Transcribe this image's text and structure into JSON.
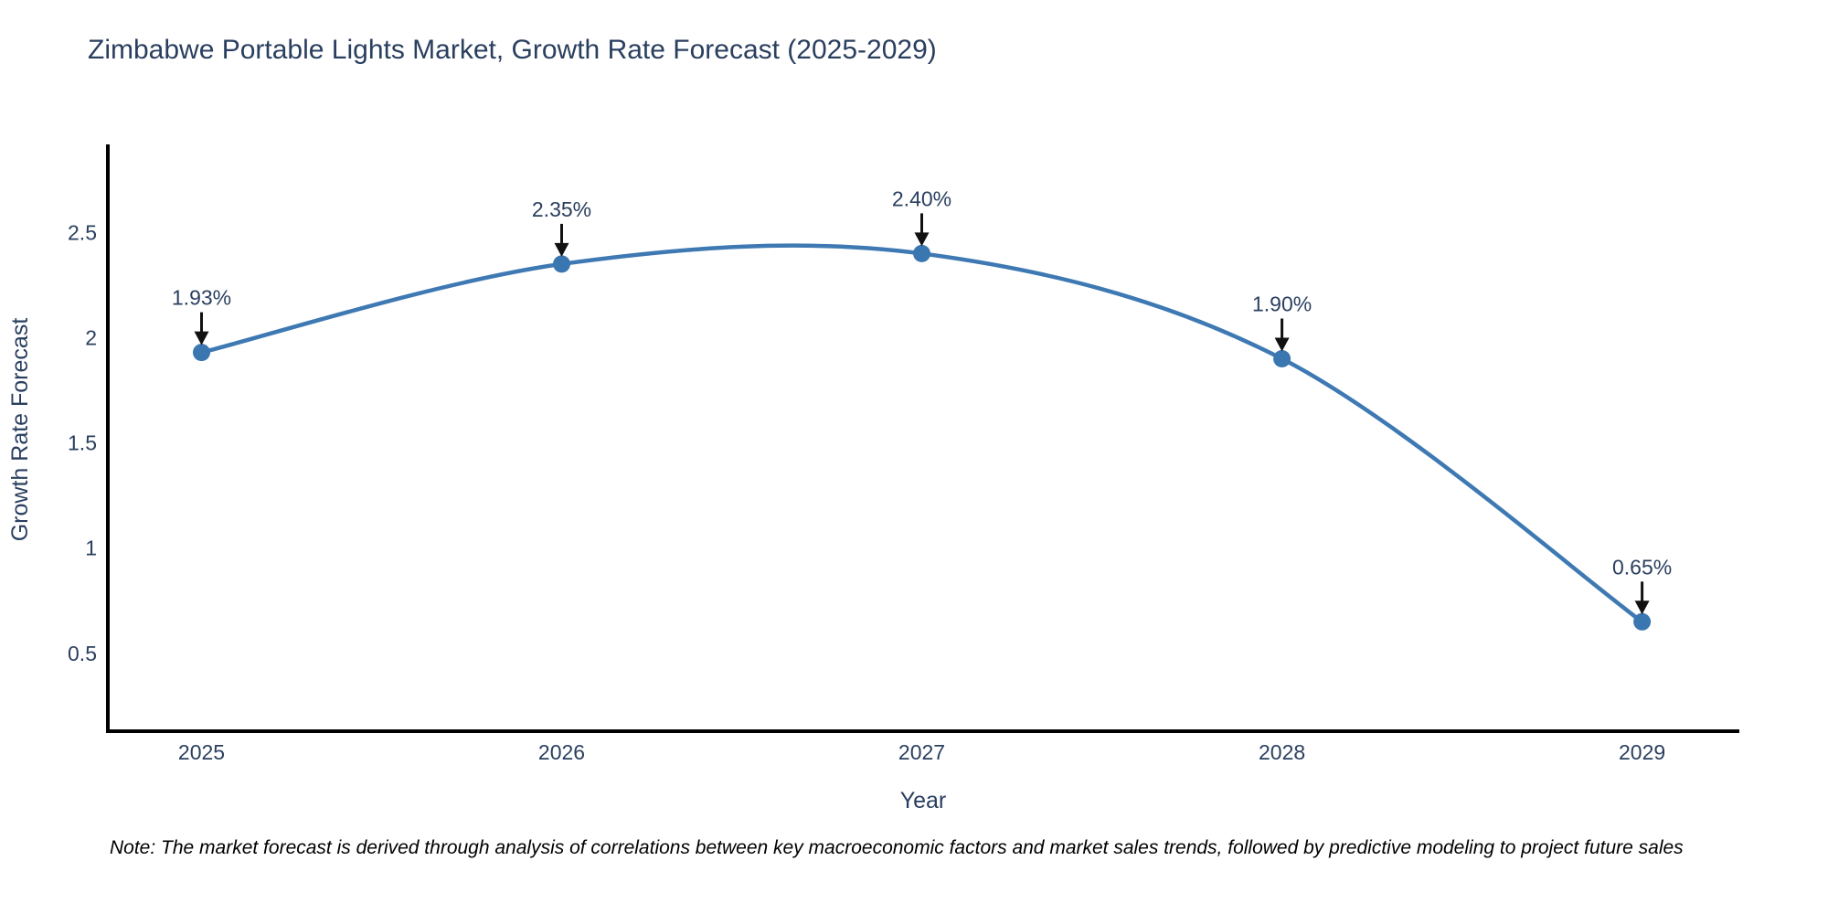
{
  "chart_data": {
    "type": "line",
    "title": "Zimbabwe Portable Lights Market, Growth Rate Forecast (2025-2029)",
    "xlabel": "Year",
    "ylabel": "Growth Rate Forecast",
    "x": [
      2025,
      2026,
      2027,
      2028,
      2029
    ],
    "series": [
      {
        "name": "Growth Rate Forecast",
        "values": [
          1.93,
          2.35,
          2.4,
          1.9,
          0.65
        ]
      }
    ],
    "point_labels": [
      "1.93%",
      "2.35%",
      "2.40%",
      "1.90%",
      "0.65%"
    ],
    "x_ticks": [
      "2025",
      "2026",
      "2027",
      "2028",
      "2029"
    ],
    "y_ticks": [
      0.5,
      1,
      1.5,
      2,
      2.5
    ],
    "xlim": [
      2024.74,
      2029.27
    ],
    "ylim": [
      0.13,
      2.91
    ],
    "grid": false,
    "legend_position": "none",
    "line_shape": "spline",
    "marker_style": "circle-with-down-arrow-annotation",
    "colors": {
      "line": "#3e79b3",
      "marker": "#3a76b0",
      "axis": "#000000",
      "tick_text": "#2a3f5f",
      "annotation_text": "#2a3f5f",
      "arrow": "#111111"
    }
  },
  "note": "Note: The market forecast is derived through analysis of correlations between key macroeconomic factors and market sales trends, followed by predictive modeling to project future sales"
}
